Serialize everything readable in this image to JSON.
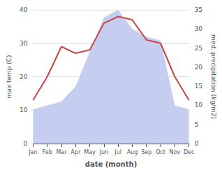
{
  "chart_data": {
    "type": "line",
    "xlabel": "date (month)",
    "ylabel": "max temp (C)",
    "y2label": "med. precipitation (kg/m2)",
    "categories": [
      "Jan",
      "Feb",
      "Mar",
      "Apr",
      "May",
      "Jun",
      "Jul",
      "Aug",
      "Sep",
      "Oct",
      "Nov",
      "Dec"
    ],
    "series": [
      {
        "type": "area",
        "axis": "y2",
        "color": "#c5cef0",
        "values": [
          9,
          10,
          11,
          15,
          24,
          33,
          35,
          30,
          28,
          27,
          10,
          9
        ]
      },
      {
        "type": "line",
        "color": "#cc4444",
        "values": [
          13,
          20,
          29,
          27,
          28,
          36,
          38,
          37,
          31,
          30,
          20,
          13
        ]
      }
    ],
    "ylim": [
      0,
      40
    ],
    "yticks": [
      0,
      10,
      20,
      30,
      40
    ],
    "y2lim": [
      0,
      35
    ],
    "y2ticks": [
      0,
      5,
      10,
      15,
      20,
      25,
      30,
      35
    ],
    "grid": true
  }
}
